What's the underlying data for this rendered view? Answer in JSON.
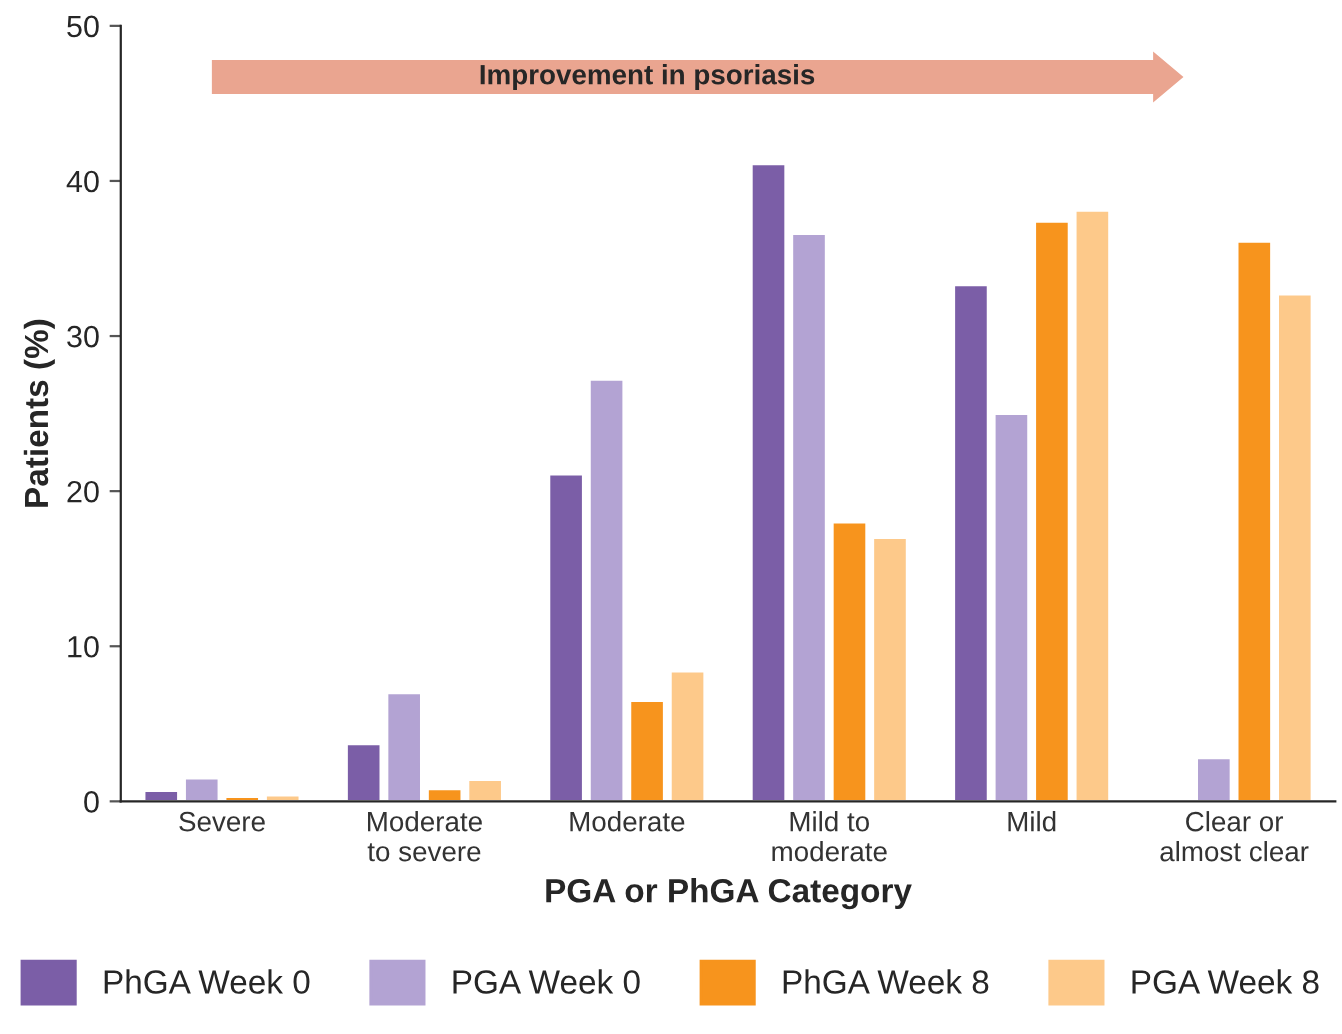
{
  "chart_data": {
    "type": "bar",
    "xlabel": "PGA or PhGA Category",
    "ylabel": "Patients (%)",
    "categories": [
      "Severe",
      "Moderate\nto severe",
      "Moderate",
      "Mild to\nmoderate",
      "Mild",
      "Clear or\nalmost clear"
    ],
    "series": [
      {
        "name": "PhGA Week 0",
        "color": "#7b5ea7",
        "values": [
          0.7,
          3.7,
          21.1,
          41.1,
          33.3,
          null
        ]
      },
      {
        "name": "PGA Week 0",
        "color": "#b3a3d3",
        "values": [
          1.5,
          7.0,
          27.2,
          36.6,
          25.0,
          2.8
        ]
      },
      {
        "name": "PhGA Week 8",
        "color": "#f7941d",
        "values": [
          0.3,
          0.8,
          6.5,
          18.0,
          37.4,
          36.1
        ]
      },
      {
        "name": "PGA Week 8",
        "color": "#fdc98a",
        "values": [
          0.4,
          1.4,
          8.4,
          17.0,
          38.1,
          32.7
        ]
      }
    ],
    "ylim": [
      0,
      50
    ],
    "yticks": [
      0,
      10,
      20,
      30,
      40,
      50
    ],
    "grid": false,
    "legend": "bottom",
    "annotations": [
      "Improvement in psoriasis"
    ]
  }
}
